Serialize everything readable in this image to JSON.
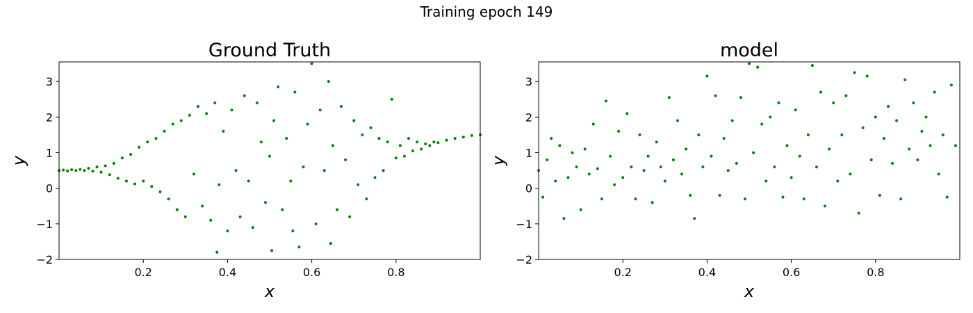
{
  "suptitle": "Training epoch 149",
  "chart_data": [
    {
      "type": "scatter",
      "title": "Ground Truth",
      "xlabel": "x",
      "ylabel": "y",
      "xlim": [
        0.0,
        1.0
      ],
      "ylim": [
        -2.0,
        3.55
      ],
      "xticks": [
        0.2,
        0.4,
        0.6,
        0.8
      ],
      "xtick_labels": [
        "0.2",
        "0.4",
        "0.6",
        "0.8"
      ],
      "yticks": [
        -2,
        -1,
        0,
        1,
        2,
        3
      ],
      "ytick_labels": [
        "−2",
        "−1",
        "0",
        "1",
        "2",
        "3"
      ],
      "grid": false,
      "marker_color": "#008000",
      "series": [
        {
          "points": [
            [
              0.0,
              0.5
            ],
            [
              0.01,
              0.51
            ],
            [
              0.02,
              0.49
            ],
            [
              0.03,
              0.52
            ],
            [
              0.04,
              0.5
            ],
            [
              0.05,
              0.53
            ],
            [
              0.06,
              0.5
            ],
            [
              0.07,
              0.56
            ],
            [
              0.08,
              0.48
            ],
            [
              0.09,
              0.6
            ],
            [
              0.1,
              0.45
            ],
            [
              0.11,
              0.63
            ],
            [
              0.12,
              0.38
            ],
            [
              0.13,
              0.7
            ],
            [
              0.14,
              0.28
            ],
            [
              0.15,
              0.85
            ],
            [
              0.16,
              0.2
            ],
            [
              0.17,
              0.95
            ],
            [
              0.18,
              0.12
            ],
            [
              0.19,
              1.15
            ],
            [
              0.2,
              0.2
            ],
            [
              0.21,
              1.3
            ],
            [
              0.22,
              0.05
            ],
            [
              0.23,
              1.4
            ],
            [
              0.24,
              -0.1
            ],
            [
              0.25,
              1.6
            ],
            [
              0.26,
              -0.3
            ],
            [
              0.27,
              1.8
            ],
            [
              0.28,
              -0.6
            ],
            [
              0.29,
              1.9
            ],
            [
              0.3,
              -0.8
            ],
            [
              0.31,
              2.05
            ],
            [
              0.32,
              0.4
            ],
            [
              0.33,
              2.3
            ],
            [
              0.34,
              -0.5
            ],
            [
              0.35,
              2.1
            ],
            [
              0.36,
              -0.9
            ],
            [
              0.37,
              2.4
            ],
            [
              0.375,
              -1.8
            ],
            [
              0.38,
              0.1
            ],
            [
              0.39,
              1.6
            ],
            [
              0.4,
              -1.2
            ],
            [
              0.41,
              2.2
            ],
            [
              0.42,
              0.5
            ],
            [
              0.43,
              -0.8
            ],
            [
              0.44,
              2.6
            ],
            [
              0.45,
              0.2
            ],
            [
              0.46,
              -1.1
            ],
            [
              0.47,
              2.4
            ],
            [
              0.48,
              1.3
            ],
            [
              0.49,
              -0.4
            ],
            [
              0.5,
              0.9
            ],
            [
              0.505,
              -1.75
            ],
            [
              0.51,
              1.9
            ],
            [
              0.52,
              2.85
            ],
            [
              0.53,
              -0.6
            ],
            [
              0.54,
              1.4
            ],
            [
              0.55,
              0.2
            ],
            [
              0.555,
              -1.2
            ],
            [
              0.56,
              2.7
            ],
            [
              0.57,
              -1.65
            ],
            [
              0.58,
              0.6
            ],
            [
              0.59,
              1.8
            ],
            [
              0.6,
              3.5
            ],
            [
              0.61,
              -1.0
            ],
            [
              0.62,
              2.2
            ],
            [
              0.63,
              0.5
            ],
            [
              0.64,
              3.0
            ],
            [
              0.645,
              -1.55
            ],
            [
              0.65,
              1.2
            ],
            [
              0.66,
              -0.6
            ],
            [
              0.67,
              2.3
            ],
            [
              0.68,
              0.8
            ],
            [
              0.69,
              -0.8
            ],
            [
              0.7,
              1.9
            ],
            [
              0.71,
              0.1
            ],
            [
              0.72,
              1.5
            ],
            [
              0.73,
              -0.3
            ],
            [
              0.74,
              1.7
            ],
            [
              0.75,
              0.3
            ],
            [
              0.76,
              1.4
            ],
            [
              0.77,
              0.5
            ],
            [
              0.78,
              1.3
            ],
            [
              0.79,
              2.5
            ],
            [
              0.8,
              0.85
            ],
            [
              0.81,
              1.2
            ],
            [
              0.82,
              0.9
            ],
            [
              0.83,
              1.4
            ],
            [
              0.84,
              1.05
            ],
            [
              0.85,
              1.3
            ],
            [
              0.86,
              1.1
            ],
            [
              0.87,
              1.25
            ],
            [
              0.88,
              1.2
            ],
            [
              0.89,
              1.3
            ],
            [
              0.9,
              1.28
            ],
            [
              0.92,
              1.35
            ],
            [
              0.94,
              1.4
            ],
            [
              0.96,
              1.44
            ],
            [
              0.98,
              1.48
            ],
            [
              1.0,
              1.5
            ]
          ]
        }
      ]
    },
    {
      "type": "scatter",
      "title": "model",
      "xlabel": "x",
      "ylabel": "y",
      "xlim": [
        0.0,
        1.0
      ],
      "ylim": [
        -2.0,
        3.55
      ],
      "xticks": [
        0.2,
        0.4,
        0.6,
        0.8
      ],
      "xtick_labels": [
        "0.2",
        "0.4",
        "0.6",
        "0.8"
      ],
      "yticks": [
        -2,
        -1,
        0,
        1,
        2,
        3
      ],
      "ytick_labels": [
        "−2",
        "−1",
        "0",
        "1",
        "2",
        "3"
      ],
      "grid": false,
      "marker_color": "#008000",
      "series": [
        {
          "points": [
            [
              0.0,
              0.5
            ],
            [
              0.01,
              -0.25
            ],
            [
              0.02,
              0.8
            ],
            [
              0.03,
              1.4
            ],
            [
              0.04,
              0.2
            ],
            [
              0.05,
              1.2
            ],
            [
              0.06,
              -0.85
            ],
            [
              0.07,
              0.3
            ],
            [
              0.08,
              1.0
            ],
            [
              0.09,
              0.6
            ],
            [
              0.1,
              -0.6
            ],
            [
              0.11,
              1.1
            ],
            [
              0.12,
              0.4
            ],
            [
              0.13,
              1.8
            ],
            [
              0.14,
              0.55
            ],
            [
              0.15,
              -0.3
            ],
            [
              0.16,
              2.45
            ],
            [
              0.17,
              0.9
            ],
            [
              0.18,
              0.1
            ],
            [
              0.19,
              1.6
            ],
            [
              0.2,
              0.3
            ],
            [
              0.21,
              2.1
            ],
            [
              0.22,
              0.6
            ],
            [
              0.23,
              -0.3
            ],
            [
              0.24,
              1.5
            ],
            [
              0.25,
              0.5
            ],
            [
              0.26,
              0.9
            ],
            [
              0.27,
              -0.4
            ],
            [
              0.28,
              1.3
            ],
            [
              0.29,
              0.6
            ],
            [
              0.3,
              0.2
            ],
            [
              0.31,
              2.55
            ],
            [
              0.32,
              0.8
            ],
            [
              0.33,
              1.9
            ],
            [
              0.34,
              0.4
            ],
            [
              0.35,
              1.1
            ],
            [
              0.36,
              -0.2
            ],
            [
              0.37,
              -0.85
            ],
            [
              0.38,
              1.5
            ],
            [
              0.39,
              0.6
            ],
            [
              0.4,
              3.15
            ],
            [
              0.41,
              0.9
            ],
            [
              0.42,
              2.6
            ],
            [
              0.43,
              -0.2
            ],
            [
              0.44,
              1.4
            ],
            [
              0.45,
              0.5
            ],
            [
              0.46,
              1.9
            ],
            [
              0.47,
              0.7
            ],
            [
              0.48,
              2.55
            ],
            [
              0.49,
              -0.3
            ],
            [
              0.5,
              3.5
            ],
            [
              0.51,
              1.0
            ],
            [
              0.52,
              3.4
            ],
            [
              0.53,
              1.8
            ],
            [
              0.54,
              0.2
            ],
            [
              0.55,
              2.0
            ],
            [
              0.56,
              0.6
            ],
            [
              0.57,
              2.4
            ],
            [
              0.58,
              -0.25
            ],
            [
              0.59,
              1.2
            ],
            [
              0.6,
              0.3
            ],
            [
              0.61,
              2.2
            ],
            [
              0.62,
              0.9
            ],
            [
              0.63,
              -0.3
            ],
            [
              0.64,
              1.5
            ],
            [
              0.65,
              3.45
            ],
            [
              0.66,
              0.6
            ],
            [
              0.67,
              2.7
            ],
            [
              0.68,
              -0.5
            ],
            [
              0.69,
              1.1
            ],
            [
              0.7,
              2.4
            ],
            [
              0.71,
              0.2
            ],
            [
              0.72,
              1.5
            ],
            [
              0.73,
              2.6
            ],
            [
              0.74,
              0.4
            ],
            [
              0.75,
              3.25
            ],
            [
              0.76,
              -0.7
            ],
            [
              0.77,
              1.7
            ],
            [
              0.78,
              3.15
            ],
            [
              0.79,
              0.8
            ],
            [
              0.8,
              2.0
            ],
            [
              0.81,
              -0.2
            ],
            [
              0.82,
              1.4
            ],
            [
              0.83,
              2.3
            ],
            [
              0.84,
              0.7
            ],
            [
              0.85,
              1.9
            ],
            [
              0.86,
              -0.3
            ],
            [
              0.87,
              3.05
            ],
            [
              0.88,
              1.1
            ],
            [
              0.89,
              2.4
            ],
            [
              0.9,
              0.8
            ],
            [
              0.91,
              1.6
            ],
            [
              0.92,
              2.0
            ],
            [
              0.93,
              1.2
            ],
            [
              0.94,
              2.7
            ],
            [
              0.95,
              0.4
            ],
            [
              0.96,
              1.5
            ],
            [
              0.97,
              -0.25
            ],
            [
              0.98,
              2.9
            ],
            [
              0.99,
              1.2
            ]
          ]
        }
      ]
    }
  ]
}
